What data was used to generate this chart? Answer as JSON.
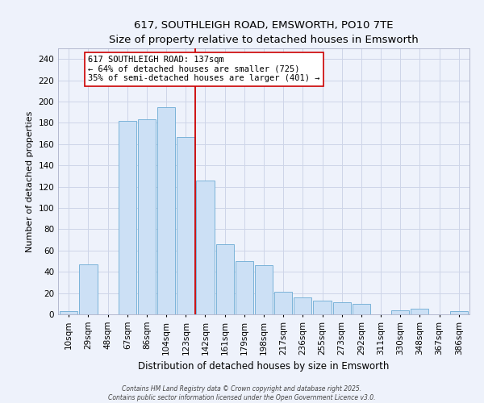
{
  "title": "617, SOUTHLEIGH ROAD, EMSWORTH, PO10 7TE",
  "subtitle": "Size of property relative to detached houses in Emsworth",
  "xlabel": "Distribution of detached houses by size in Emsworth",
  "ylabel": "Number of detached properties",
  "bar_labels": [
    "10sqm",
    "29sqm",
    "48sqm",
    "67sqm",
    "86sqm",
    "104sqm",
    "123sqm",
    "142sqm",
    "161sqm",
    "179sqm",
    "198sqm",
    "217sqm",
    "236sqm",
    "255sqm",
    "273sqm",
    "292sqm",
    "311sqm",
    "330sqm",
    "348sqm",
    "367sqm",
    "386sqm"
  ],
  "bar_values": [
    3,
    47,
    0,
    182,
    183,
    195,
    167,
    126,
    66,
    50,
    46,
    21,
    16,
    13,
    11,
    10,
    0,
    4,
    5,
    0,
    3
  ],
  "bar_color": "#cce0f5",
  "bar_edge_color": "#7ab3d9",
  "vline_x_index": 7,
  "vline_color": "#cc0000",
  "annotation_title": "617 SOUTHLEIGH ROAD: 137sqm",
  "annotation_line1": "← 64% of detached houses are smaller (725)",
  "annotation_line2": "35% of semi-detached houses are larger (401) →",
  "annotation_box_color": "white",
  "annotation_box_edge": "#cc0000",
  "ylim": [
    0,
    250
  ],
  "yticks": [
    0,
    20,
    40,
    60,
    80,
    100,
    120,
    140,
    160,
    180,
    200,
    220,
    240
  ],
  "footer_line1": "Contains HM Land Registry data © Crown copyright and database right 2025.",
  "footer_line2": "Contains public sector information licensed under the Open Government Licence v3.0.",
  "bg_color": "#eef2fb",
  "grid_color": "#cdd5e8",
  "title_fontsize": 9.5,
  "subtitle_fontsize": 8.5,
  "ylabel_fontsize": 8,
  "xlabel_fontsize": 8.5,
  "tick_fontsize": 7.5,
  "ann_fontsize": 7.5,
  "footer_fontsize": 5.5
}
